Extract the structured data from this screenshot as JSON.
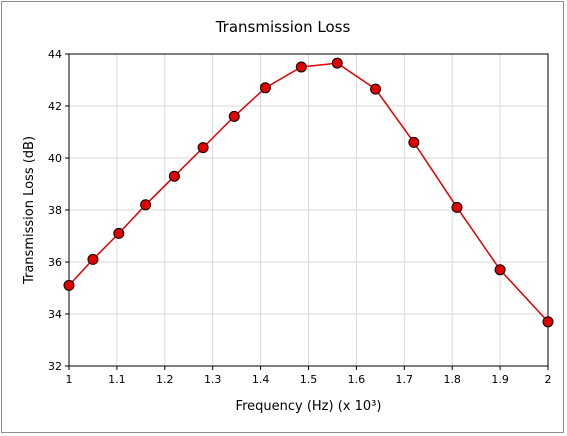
{
  "chart_data": {
    "type": "line",
    "title": "Transmission Loss",
    "xlabel": "Frequency (Hz) (x 10³)",
    "ylabel": "Transmission Loss (dB)",
    "xlim": [
      1,
      2
    ],
    "ylim": [
      32,
      44
    ],
    "x_ticks": [
      "1",
      "1.1",
      "1.2",
      "1.3",
      "1.4",
      "1.5",
      "1.6",
      "1.7",
      "1.8",
      "1.9",
      "2"
    ],
    "y_ticks": [
      "32",
      "34",
      "36",
      "38",
      "40",
      "42",
      "44"
    ],
    "grid": true,
    "series": [
      {
        "color": "#e00000",
        "marker_color": "#e00000",
        "x": [
          1.0,
          1.05,
          1.104,
          1.16,
          1.22,
          1.28,
          1.345,
          1.41,
          1.485,
          1.56,
          1.64,
          1.72,
          1.81,
          1.9,
          2.0
        ],
        "y": [
          35.1,
          36.1,
          37.1,
          38.2,
          39.3,
          40.4,
          41.6,
          42.7,
          43.5,
          43.65,
          42.65,
          40.6,
          38.1,
          35.7,
          33.7
        ]
      }
    ]
  }
}
